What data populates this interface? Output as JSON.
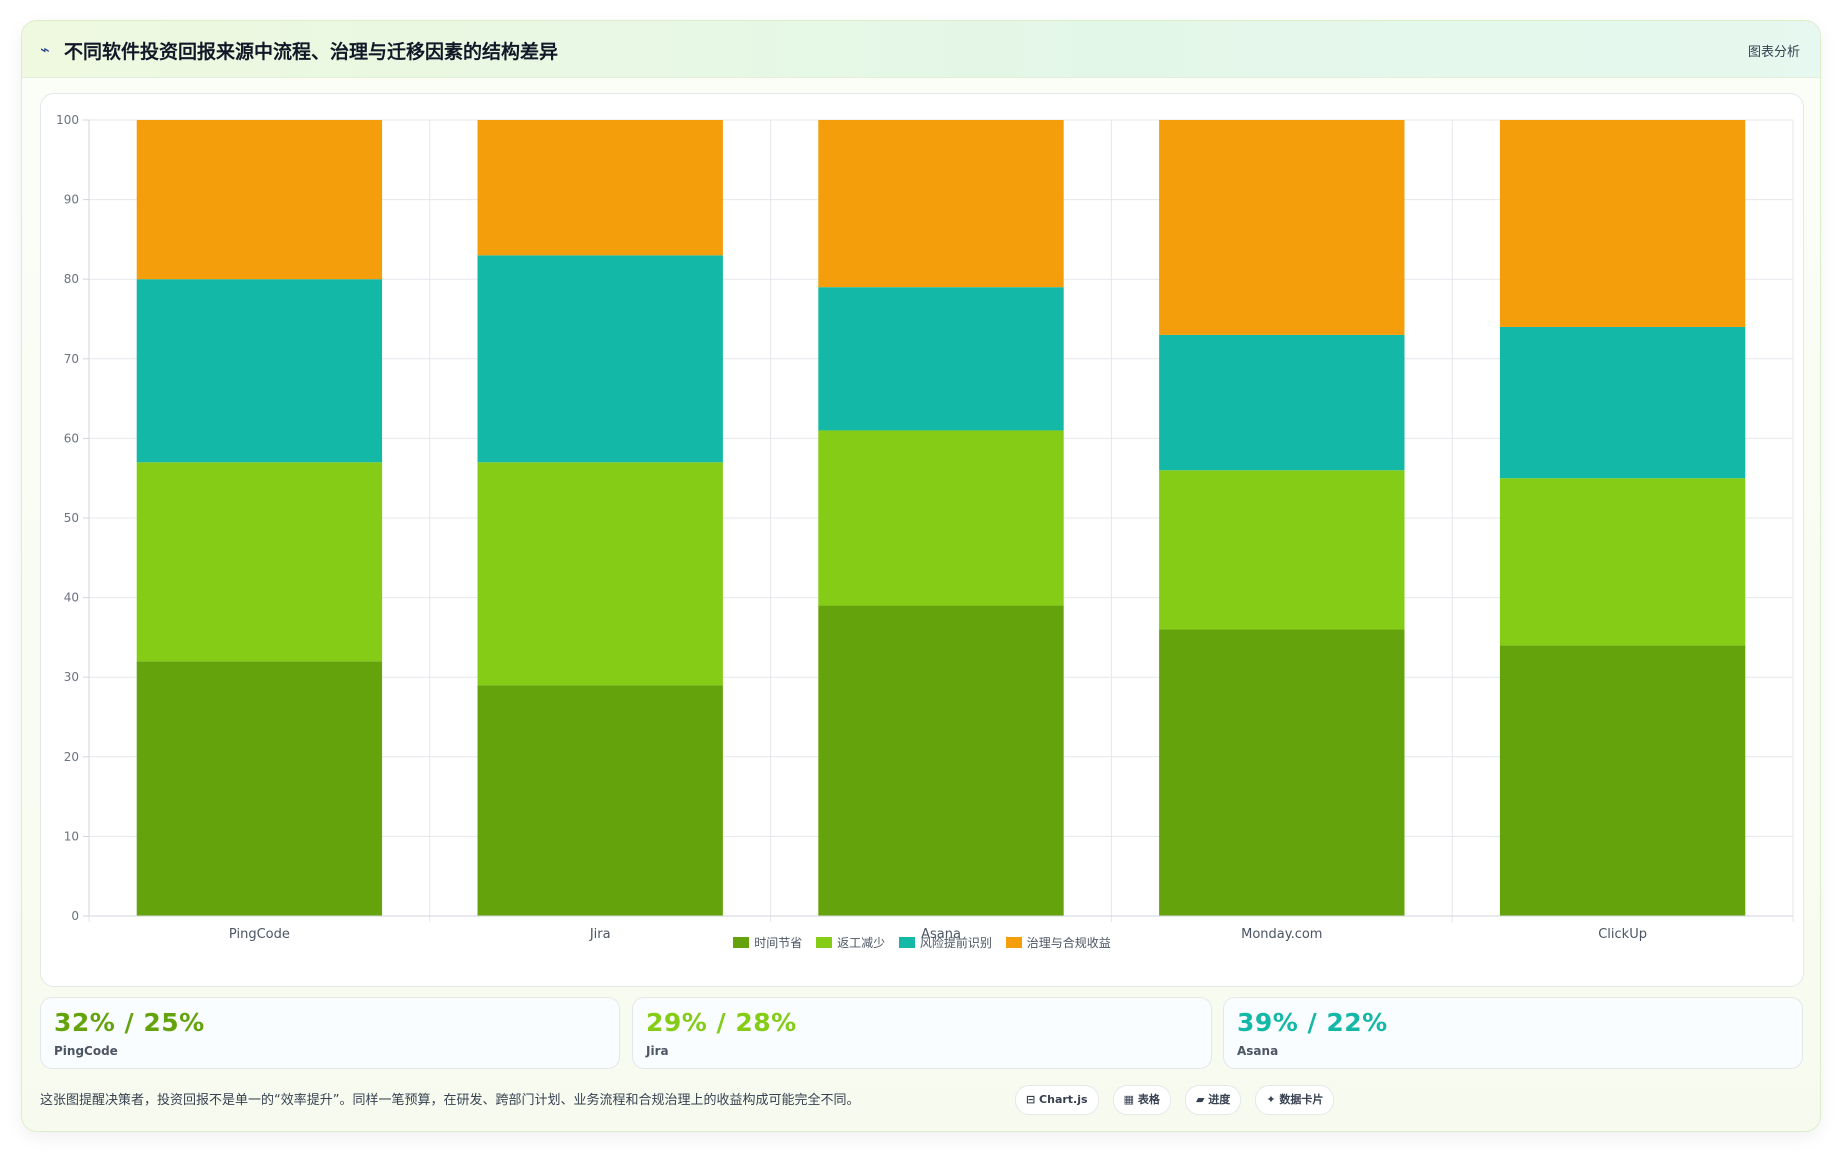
{
  "header": {
    "icon": "chart-icon",
    "title": "不同软件投资回报来源中流程、治理与迁移因素的结构差异",
    "link_label": "图表分析"
  },
  "chart_data": {
    "type": "bar",
    "stacked": true,
    "categories": [
      "PingCode",
      "Jira",
      "Asana",
      "Monday.com",
      "ClickUp"
    ],
    "series": [
      {
        "name": "时间节省",
        "color": "#65a30d",
        "values": [
          32,
          29,
          39,
          36,
          34
        ]
      },
      {
        "name": "返工减少",
        "color": "#84cc16",
        "values": [
          25,
          28,
          22,
          20,
          21
        ]
      },
      {
        "name": "风险提前识别",
        "color": "#14b8a6",
        "values": [
          23,
          26,
          18,
          17,
          19
        ]
      },
      {
        "name": "治理与合规收益",
        "color": "#f59e0b",
        "values": [
          20,
          17,
          21,
          27,
          26
        ]
      }
    ],
    "ylim": [
      0,
      100
    ],
    "yticks": [
      0,
      10,
      20,
      30,
      40,
      50,
      60,
      70,
      80,
      90,
      100
    ],
    "grid": true,
    "legend_position": "bottom"
  },
  "stats": [
    {
      "value": "32% / 25%",
      "label": "PingCode",
      "color": "#65a30d"
    },
    {
      "value": "29% / 28%",
      "label": "Jira",
      "color": "#84cc16"
    },
    {
      "value": "39% / 22%",
      "label": "Asana",
      "color": "#14b8a6"
    }
  ],
  "footer": {
    "note": "这张图提醒决策者，投资回报不是单一的“效率提升”。同样一笔预算，在研发、跨部门计划、业务流程和合规治理上的收益构成可能完全不同。",
    "tags": [
      "⊟ Chart.js",
      "▦ 表格",
      "▰ 进度",
      "✦ 数据卡片"
    ]
  }
}
